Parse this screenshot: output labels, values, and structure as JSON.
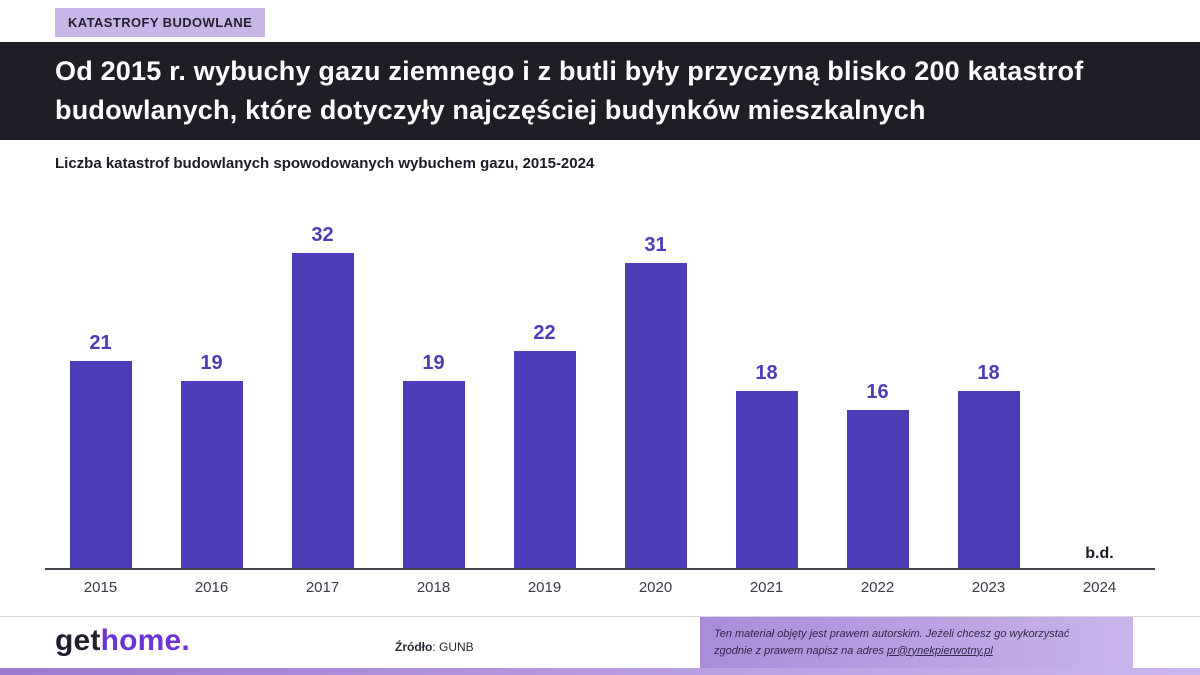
{
  "badge": {
    "label": "KATASTROFY BUDOWLANE"
  },
  "headline": "Od 2015 r. wybuchy gazu ziemnego i z butli były przyczyną blisko 200 katastrof budowlanych, które dotyczyły najczęściej budynków mieszkalnych",
  "chart_title": "Liczba katastrof budowlanych spowodowanych wybuchem gazu, 2015-2024",
  "chart_data": {
    "type": "bar",
    "title": "Liczba katastrof budowlanych spowodowanych wybuchem gazu, 2015-2024",
    "categories": [
      "2015",
      "2016",
      "2017",
      "2018",
      "2019",
      "2020",
      "2021",
      "2022",
      "2023",
      "2024"
    ],
    "values": [
      21,
      19,
      32,
      19,
      22,
      31,
      18,
      16,
      18,
      null
    ],
    "no_data_label": "b.d.",
    "xlabel": "",
    "ylabel": "",
    "ylim": [
      0,
      32
    ],
    "grid": false,
    "legend": false,
    "bar_color": "#4b3db8"
  },
  "footer": {
    "logo": {
      "part1": "get",
      "part2": "home."
    },
    "source_label": "Źródło",
    "source_value": ": GUNB",
    "copyright": {
      "line1": "Ten materiał objęty jest prawem autorskim. Jeżeli chcesz go wykorzystać",
      "line2_prefix": "zgodnie z prawem napisz na adres ",
      "link": "pr@rynekpierwotny.pl"
    }
  },
  "colors": {
    "badge_bg": "#c9b6e8",
    "banner_bg": "#211d26",
    "bar": "#4b3db8",
    "logo_accent": "#6e33d4",
    "copyright_gradient_start": "#a98cd8",
    "copyright_gradient_end": "#c9b4ea"
  }
}
